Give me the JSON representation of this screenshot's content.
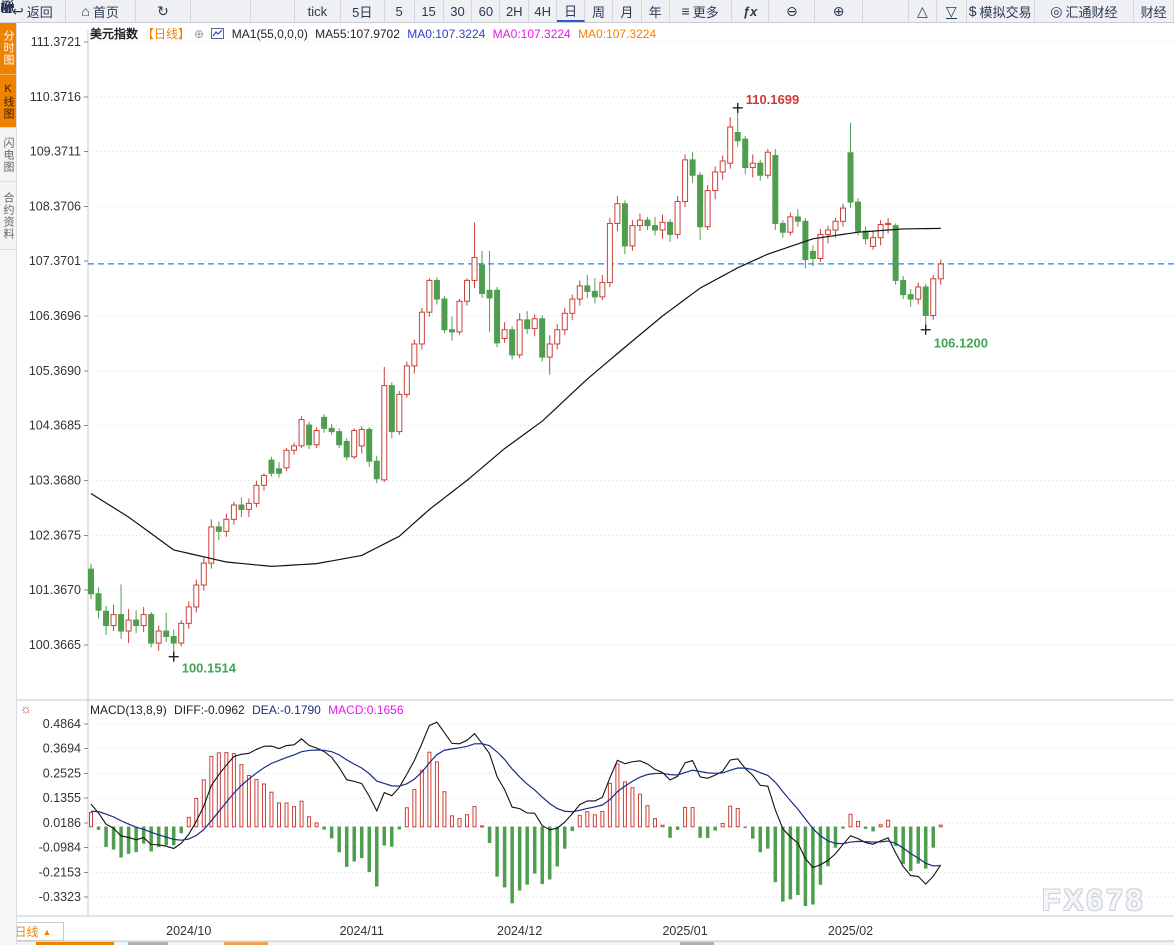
{
  "toolbar": {
    "items": [
      {
        "id": "back",
        "icon": "back-arrow",
        "label": "返回"
      },
      {
        "id": "home",
        "icon": "home",
        "label": "首页"
      },
      {
        "id": "refresh",
        "icon": "refresh",
        "label": ""
      },
      {
        "id": "bar-chart",
        "icon": "bar-chart",
        "label": ""
      },
      {
        "id": "candlestick",
        "icon": "candlestick",
        "label": ""
      },
      {
        "id": "tick",
        "label": "tick"
      },
      {
        "id": "five-day",
        "label": "5日"
      },
      {
        "id": "min5",
        "label": "5"
      },
      {
        "id": "min15",
        "label": "15"
      },
      {
        "id": "min30",
        "label": "30"
      },
      {
        "id": "min60",
        "label": "60"
      },
      {
        "id": "hour2",
        "label": "2H"
      },
      {
        "id": "hour4",
        "label": "4H"
      },
      {
        "id": "day",
        "label": "日",
        "selected": true
      },
      {
        "id": "week",
        "label": "周"
      },
      {
        "id": "month",
        "label": "月"
      },
      {
        "id": "year",
        "label": "年"
      },
      {
        "id": "more",
        "icon": "menu",
        "label": "更多"
      },
      {
        "id": "fx",
        "label": "ƒx"
      },
      {
        "id": "zoom-out",
        "icon": "zoom-out",
        "label": ""
      },
      {
        "id": "zoom-in",
        "icon": "zoom-in",
        "label": ""
      },
      {
        "id": "draw",
        "icon": "pencil",
        "label": ""
      },
      {
        "id": "triangle-up",
        "icon": "triangle-up",
        "label": ""
      },
      {
        "id": "triangle-down",
        "icon": "triangle-down",
        "label": ""
      },
      {
        "id": "sim-trade",
        "icon": "dollar",
        "label": "模拟交易"
      },
      {
        "id": "huitong",
        "icon": "logo-circle",
        "label": "汇通财经"
      },
      {
        "id": "finance",
        "label": "财经"
      }
    ]
  },
  "sidebar": {
    "tabs": [
      {
        "id": "time-share",
        "label": "分时图",
        "style": "orange-white"
      },
      {
        "id": "kline",
        "label": "K线图",
        "style": "orange-dark"
      },
      {
        "id": "lightning",
        "label": "闪电图",
        "style": "plain"
      },
      {
        "id": "contract-info",
        "label": "合约资料",
        "style": "plain"
      }
    ]
  },
  "legend": {
    "symbol": "美元指数",
    "period": "【日线】",
    "add_icon": "⊕",
    "ma_param": "MA1(55,0,0,0)",
    "ma55": "MA55:107.9702",
    "ma0_blue": "MA0:107.3224",
    "ma0_pink": "MA0:107.3224",
    "ma0_orange": "MA0:107.3224"
  },
  "macd_legend": {
    "title": "MACD(13,8,9)",
    "diff": "DIFF:-0.0962",
    "dea": "DEA:-0.1790",
    "macd": "MACD:0.1656"
  },
  "bottom_bar": {
    "period_label": "日线",
    "arrow": "▲"
  },
  "watermark": "FX678",
  "colors": {
    "up": "#c8413a",
    "down": "#4f9e4f",
    "ma55": "#111111",
    "last_price_line": "#2585e4",
    "diff_line": "#111111",
    "dea_line": "#1b2d86",
    "hist_pos": "#c8413a",
    "hist_neg": "#4f9e4f",
    "accent_orange": "#ef8200",
    "legend_blue": "#2d3fd0",
    "legend_pink": "#e617e6",
    "annotation_high": "#cc3b34",
    "annotation_low": "#43a356",
    "axis_text": "#333333",
    "grid": "#d9d9e0",
    "frame": "#c4c8ce"
  },
  "chart_data": {
    "type": "candlestick+macd",
    "title": "美元指数 日线 (US Dollar Index, daily)",
    "price_ticks": [
      "111.3721",
      "110.3716",
      "109.3711",
      "108.3706",
      "107.3701",
      "106.3696",
      "105.3690",
      "104.3685",
      "103.3680",
      "102.3675",
      "101.3670",
      "100.3665"
    ],
    "macd_ticks": [
      "0.4864",
      "0.3694",
      "0.2525",
      "0.1355",
      "0.0186",
      "-0.0984",
      "-0.2153",
      "-0.3323"
    ],
    "month_labels": [
      {
        "index": 13,
        "text": "2024/10"
      },
      {
        "index": 36,
        "text": "2024/11"
      },
      {
        "index": 57,
        "text": "2024/12"
      },
      {
        "index": 79,
        "text": "2025/01"
      },
      {
        "index": 101,
        "text": "2025/02"
      }
    ],
    "macd_params": [
      13,
      8,
      9
    ],
    "ohlc": [
      [
        101.75,
        101.85,
        101.2,
        101.3
      ],
      [
        101.3,
        101.42,
        100.85,
        101.0
      ],
      [
        100.98,
        101.08,
        100.55,
        100.72
      ],
      [
        100.72,
        101.1,
        100.62,
        100.92
      ],
      [
        100.92,
        101.47,
        100.48,
        100.62
      ],
      [
        100.62,
        101.02,
        100.4,
        100.82
      ],
      [
        100.82,
        101.0,
        100.58,
        100.72
      ],
      [
        100.72,
        101.06,
        100.6,
        100.92
      ],
      [
        100.92,
        100.97,
        100.32,
        100.4
      ],
      [
        100.4,
        100.72,
        100.26,
        100.62
      ],
      [
        100.62,
        100.95,
        100.42,
        100.52
      ],
      [
        100.52,
        100.65,
        100.15,
        100.4
      ],
      [
        100.4,
        100.82,
        100.34,
        100.76
      ],
      [
        100.76,
        101.16,
        100.66,
        101.06
      ],
      [
        101.06,
        101.56,
        100.96,
        101.46
      ],
      [
        101.46,
        101.96,
        101.36,
        101.86
      ],
      [
        101.86,
        102.66,
        101.76,
        102.52
      ],
      [
        102.52,
        102.62,
        102.28,
        102.44
      ],
      [
        102.44,
        102.76,
        102.34,
        102.66
      ],
      [
        102.66,
        102.98,
        102.56,
        102.92
      ],
      [
        102.92,
        103.06,
        102.7,
        102.84
      ],
      [
        102.84,
        103.04,
        102.7,
        102.95
      ],
      [
        102.95,
        103.36,
        102.88,
        103.28
      ],
      [
        103.28,
        103.5,
        103.18,
        103.46
      ],
      [
        103.74,
        103.8,
        103.44,
        103.5
      ],
      [
        103.58,
        103.7,
        103.42,
        103.5
      ],
      [
        103.6,
        103.96,
        103.54,
        103.92
      ],
      [
        103.92,
        104.06,
        103.84,
        104.0
      ],
      [
        104.0,
        104.54,
        103.96,
        104.48
      ],
      [
        104.38,
        104.44,
        103.94,
        104.02
      ],
      [
        104.02,
        104.34,
        103.96,
        104.28
      ],
      [
        104.52,
        104.58,
        104.24,
        104.32
      ],
      [
        104.32,
        104.4,
        104.2,
        104.26
      ],
      [
        104.26,
        104.32,
        103.96,
        104.02
      ],
      [
        104.08,
        104.14,
        103.74,
        103.8
      ],
      [
        103.8,
        104.32,
        103.76,
        104.28
      ],
      [
        104.0,
        104.36,
        103.86,
        104.3
      ],
      [
        104.3,
        104.34,
        103.62,
        103.72
      ],
      [
        103.72,
        103.82,
        103.32,
        103.4
      ],
      [
        103.38,
        105.44,
        103.34,
        105.1
      ],
      [
        105.1,
        105.16,
        104.14,
        104.26
      ],
      [
        104.26,
        105.0,
        104.2,
        104.94
      ],
      [
        104.94,
        105.54,
        104.88,
        105.46
      ],
      [
        105.46,
        105.94,
        105.32,
        105.86
      ],
      [
        105.86,
        106.52,
        105.76,
        106.44
      ],
      [
        106.44,
        107.06,
        106.36,
        107.02
      ],
      [
        107.02,
        107.08,
        106.58,
        106.68
      ],
      [
        106.68,
        106.74,
        106.06,
        106.12
      ],
      [
        106.12,
        106.36,
        105.92,
        106.08
      ],
      [
        106.08,
        106.68,
        106.02,
        106.64
      ],
      [
        106.64,
        107.06,
        106.56,
        107.02
      ],
      [
        107.02,
        108.08,
        106.88,
        107.44
      ],
      [
        107.3,
        107.56,
        106.7,
        106.78
      ],
      [
        106.84,
        107.56,
        106.08,
        106.7
      ],
      [
        106.84,
        106.9,
        105.8,
        105.88
      ],
      [
        105.96,
        106.26,
        105.88,
        106.12
      ],
      [
        106.12,
        106.18,
        105.58,
        105.66
      ],
      [
        105.66,
        106.42,
        105.6,
        106.3
      ],
      [
        106.3,
        106.46,
        106.04,
        106.14
      ],
      [
        106.14,
        106.4,
        106.0,
        106.32
      ],
      [
        106.32,
        106.38,
        105.54,
        105.62
      ],
      [
        105.62,
        106.02,
        105.3,
        105.86
      ],
      [
        105.86,
        106.22,
        105.76,
        106.12
      ],
      [
        106.12,
        106.52,
        106.02,
        106.42
      ],
      [
        106.42,
        106.76,
        106.3,
        106.68
      ],
      [
        106.68,
        107.02,
        106.56,
        106.92
      ],
      [
        106.92,
        107.12,
        106.7,
        106.82
      ],
      [
        106.82,
        107.06,
        106.6,
        106.72
      ],
      [
        106.72,
        107.12,
        106.66,
        106.98
      ],
      [
        106.98,
        108.16,
        106.9,
        108.06
      ],
      [
        108.06,
        108.56,
        107.92,
        108.42
      ],
      [
        108.42,
        108.48,
        107.5,
        107.65
      ],
      [
        107.65,
        108.12,
        107.56,
        108.02
      ],
      [
        108.02,
        108.24,
        107.92,
        108.12
      ],
      [
        108.12,
        108.18,
        107.94,
        108.02
      ],
      [
        108.02,
        108.18,
        107.84,
        107.94
      ],
      [
        107.94,
        108.22,
        107.78,
        108.08
      ],
      [
        108.08,
        108.14,
        107.72,
        107.86
      ],
      [
        107.86,
        108.56,
        107.78,
        108.46
      ],
      [
        108.46,
        109.32,
        108.36,
        109.22
      ],
      [
        109.22,
        109.36,
        108.8,
        108.94
      ],
      [
        108.94,
        109.0,
        107.76,
        108.0
      ],
      [
        108.0,
        108.76,
        107.94,
        108.66
      ],
      [
        108.66,
        109.1,
        108.5,
        109.0
      ],
      [
        109.0,
        109.3,
        108.86,
        109.2
      ],
      [
        109.16,
        110.0,
        109.06,
        109.82
      ],
      [
        109.72,
        110.17,
        109.46,
        109.57
      ],
      [
        109.6,
        109.66,
        108.96,
        109.08
      ],
      [
        109.08,
        109.32,
        108.9,
        109.16
      ],
      [
        109.16,
        109.22,
        108.84,
        108.94
      ],
      [
        108.94,
        109.42,
        108.88,
        109.36
      ],
      [
        109.3,
        109.42,
        107.94,
        108.06
      ],
      [
        108.06,
        108.12,
        107.8,
        107.9
      ],
      [
        107.9,
        108.26,
        107.84,
        108.18
      ],
      [
        108.18,
        108.32,
        108.0,
        108.1
      ],
      [
        108.1,
        108.16,
        107.24,
        107.4
      ],
      [
        107.55,
        107.66,
        107.28,
        107.42
      ],
      [
        107.42,
        107.96,
        107.36,
        107.86
      ],
      [
        107.86,
        108.02,
        107.7,
        107.94
      ],
      [
        107.94,
        108.16,
        107.8,
        108.1
      ],
      [
        108.1,
        108.42,
        108.0,
        108.34
      ],
      [
        109.35,
        109.9,
        108.34,
        108.45
      ],
      [
        108.45,
        108.52,
        107.84,
        107.92
      ],
      [
        107.92,
        108.0,
        107.68,
        107.78
      ],
      [
        107.64,
        107.92,
        107.58,
        107.8
      ],
      [
        107.8,
        108.12,
        107.66,
        108.04
      ],
      [
        108.04,
        108.16,
        107.88,
        108.06
      ],
      [
        108.02,
        108.06,
        106.94,
        107.02
      ],
      [
        107.02,
        107.1,
        106.68,
        106.76
      ],
      [
        106.76,
        106.86,
        106.54,
        106.68
      ],
      [
        106.68,
        106.98,
        106.58,
        106.9
      ],
      [
        106.9,
        106.96,
        106.12,
        106.38
      ],
      [
        106.38,
        107.12,
        106.3,
        107.05
      ],
      [
        107.05,
        107.4,
        106.94,
        107.32
      ]
    ],
    "ma55_points": [
      [
        0,
        103.13
      ],
      [
        5,
        102.7
      ],
      [
        11,
        102.1
      ],
      [
        18,
        101.88
      ],
      [
        24,
        101.8
      ],
      [
        30,
        101.85
      ],
      [
        36,
        102.0
      ],
      [
        41,
        102.35
      ],
      [
        45,
        102.84
      ],
      [
        50,
        103.37
      ],
      [
        55,
        103.95
      ],
      [
        60,
        104.45
      ],
      [
        66,
        105.22
      ],
      [
        71,
        105.8
      ],
      [
        76,
        106.37
      ],
      [
        81,
        106.88
      ],
      [
        86,
        107.25
      ],
      [
        90,
        107.5
      ],
      [
        96,
        107.78
      ],
      [
        102,
        107.9
      ],
      [
        108,
        107.96
      ],
      [
        113,
        107.97
      ]
    ],
    "annotations": {
      "high": {
        "index": 86,
        "price": 110.1699,
        "text": "110.1699"
      },
      "low_start": {
        "index": 11,
        "price": 100.1514,
        "text": "100.1514"
      },
      "low_recent": {
        "index": 111,
        "price": 106.12,
        "text": "106.1200"
      },
      "last_price": {
        "value": 107.3224
      }
    }
  }
}
